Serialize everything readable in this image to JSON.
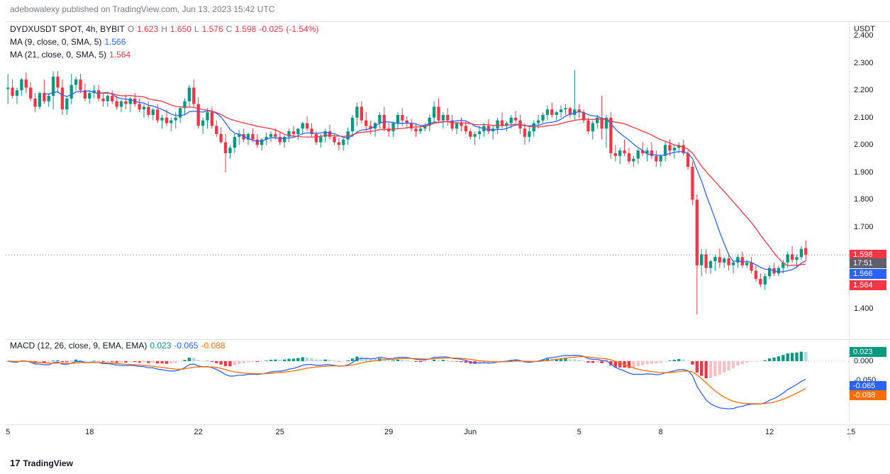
{
  "header": {
    "publish_text": "adebowalexy published on TradingView.com, Jun 13, 2023 15:42 UTC"
  },
  "legend": {
    "symbol": "DYDXUSDT SPOT, 4h, BYBIT",
    "O": "1.623",
    "H": "1.650",
    "L": "1.576",
    "C": "1.598",
    "change": "-0.025",
    "change_pct": "(-1.54%)",
    "ma9_label": "MA (9, close, 0, SMA, 5)",
    "ma9_val": "1.566",
    "ma21_label": "MA (21, close, 0, SMA, 5)",
    "ma21_val": "1.564"
  },
  "macd_legend": {
    "label": "MACD (12, 26, close, 9, EMA, EMA)",
    "hist": "0.023",
    "macd": "-0.065",
    "signal": "-0.088"
  },
  "yaxis_main": {
    "unit": "USDT",
    "min": 1.3,
    "max": 2.45,
    "ticks": [
      2.4,
      2.3,
      2.2,
      2.1,
      2.0,
      1.9,
      1.8,
      1.7,
      1.4
    ],
    "tags": [
      {
        "val": "1.598",
        "bg": "#f23645",
        "y": 1.598
      },
      {
        "val": "17:51",
        "bg": "#5d606b",
        "y": 1.564,
        "offset": -1
      },
      {
        "val": "1.566",
        "bg": "#2962ff",
        "y": 1.566,
        "offset": 14
      },
      {
        "val": "1.564",
        "bg": "#f23645",
        "y": 1.564,
        "offset": 30
      }
    ]
  },
  "yaxis_macd": {
    "min": -0.16,
    "max": 0.055,
    "ticks": [
      0.0,
      -0.05
    ],
    "tags": [
      {
        "val": "0.023",
        "bg": "#089981",
        "y": 0.023
      },
      {
        "val": "-0.065",
        "bg": "#2962ff",
        "y": -0.065
      },
      {
        "val": "-0.088",
        "bg": "#ff6d00",
        "y": -0.088
      }
    ]
  },
  "xaxis": {
    "ticks": [
      {
        "label": "5",
        "i": 0
      },
      {
        "label": "18",
        "i": 18
      },
      {
        "label": "22",
        "i": 42
      },
      {
        "label": "25",
        "i": 60
      },
      {
        "label": "29",
        "i": 84
      },
      {
        "label": "Jun",
        "i": 102
      },
      {
        "label": "5",
        "i": 126
      },
      {
        "label": "8",
        "i": 144
      },
      {
        "label": "12",
        "i": 168
      },
      {
        "label": "15",
        "i": 186
      }
    ],
    "count": 186
  },
  "colors": {
    "up": "#089981",
    "down": "#f23645",
    "up_light": "#acdcd3",
    "down_light": "#f5c1c5",
    "ma9": "#2962ff",
    "ma21": "#f23645",
    "macd_line": "#2962ff",
    "signal_line": "#ff6d00",
    "grid": "#e0e3eb",
    "bg": "#ffffff"
  },
  "candles": [
    {
      "o": 2.205,
      "h": 2.26,
      "l": 2.15,
      "c": 2.21
    },
    {
      "o": 2.21,
      "h": 2.24,
      "l": 2.17,
      "c": 2.18
    },
    {
      "o": 2.18,
      "h": 2.21,
      "l": 2.15,
      "c": 2.2
    },
    {
      "o": 2.2,
      "h": 2.245,
      "l": 2.18,
      "c": 2.24
    },
    {
      "o": 2.24,
      "h": 2.265,
      "l": 2.19,
      "c": 2.21
    },
    {
      "o": 2.21,
      "h": 2.23,
      "l": 2.16,
      "c": 2.17
    },
    {
      "o": 2.17,
      "h": 2.19,
      "l": 2.12,
      "c": 2.14
    },
    {
      "o": 2.14,
      "h": 2.195,
      "l": 2.13,
      "c": 2.19
    },
    {
      "o": 2.19,
      "h": 2.24,
      "l": 2.15,
      "c": 2.16
    },
    {
      "o": 2.16,
      "h": 2.19,
      "l": 2.14,
      "c": 2.18
    },
    {
      "o": 2.18,
      "h": 2.27,
      "l": 2.13,
      "c": 2.25
    },
    {
      "o": 2.25,
      "h": 2.27,
      "l": 2.19,
      "c": 2.21
    },
    {
      "o": 2.21,
      "h": 2.24,
      "l": 2.11,
      "c": 2.13
    },
    {
      "o": 2.13,
      "h": 2.18,
      "l": 2.11,
      "c": 2.17
    },
    {
      "o": 2.17,
      "h": 2.26,
      "l": 2.15,
      "c": 2.22
    },
    {
      "o": 2.22,
      "h": 2.25,
      "l": 2.2,
      "c": 2.24
    },
    {
      "o": 2.24,
      "h": 2.26,
      "l": 2.19,
      "c": 2.2
    },
    {
      "o": 2.2,
      "h": 2.225,
      "l": 2.16,
      "c": 2.17
    },
    {
      "o": 2.17,
      "h": 2.2,
      "l": 2.15,
      "c": 2.19
    },
    {
      "o": 2.19,
      "h": 2.22,
      "l": 2.17,
      "c": 2.2
    },
    {
      "o": 2.2,
      "h": 2.22,
      "l": 2.16,
      "c": 2.17
    },
    {
      "o": 2.17,
      "h": 2.19,
      "l": 2.14,
      "c": 2.16
    },
    {
      "o": 2.16,
      "h": 2.185,
      "l": 2.14,
      "c": 2.18
    },
    {
      "o": 2.18,
      "h": 2.2,
      "l": 2.15,
      "c": 2.16
    },
    {
      "o": 2.16,
      "h": 2.18,
      "l": 2.13,
      "c": 2.14
    },
    {
      "o": 2.14,
      "h": 2.165,
      "l": 2.12,
      "c": 2.16
    },
    {
      "o": 2.16,
      "h": 2.185,
      "l": 2.13,
      "c": 2.15
    },
    {
      "o": 2.15,
      "h": 2.175,
      "l": 2.12,
      "c": 2.17
    },
    {
      "o": 2.17,
      "h": 2.19,
      "l": 2.14,
      "c": 2.15
    },
    {
      "o": 2.15,
      "h": 2.17,
      "l": 2.12,
      "c": 2.13
    },
    {
      "o": 2.13,
      "h": 2.15,
      "l": 2.1,
      "c": 2.14
    },
    {
      "o": 2.14,
      "h": 2.16,
      "l": 2.1,
      "c": 2.11
    },
    {
      "o": 2.11,
      "h": 2.135,
      "l": 2.09,
      "c": 2.13
    },
    {
      "o": 2.13,
      "h": 2.15,
      "l": 2.08,
      "c": 2.09
    },
    {
      "o": 2.09,
      "h": 2.11,
      "l": 2.06,
      "c": 2.1
    },
    {
      "o": 2.1,
      "h": 2.13,
      "l": 2.07,
      "c": 2.08
    },
    {
      "o": 2.08,
      "h": 2.1,
      "l": 2.05,
      "c": 2.09
    },
    {
      "o": 2.09,
      "h": 2.12,
      "l": 2.06,
      "c": 2.1
    },
    {
      "o": 2.1,
      "h": 2.14,
      "l": 2.08,
      "c": 2.135
    },
    {
      "o": 2.135,
      "h": 2.17,
      "l": 2.11,
      "c": 2.16
    },
    {
      "o": 2.16,
      "h": 2.22,
      "l": 2.14,
      "c": 2.21
    },
    {
      "o": 2.21,
      "h": 2.24,
      "l": 2.14,
      "c": 2.15
    },
    {
      "o": 2.15,
      "h": 2.175,
      "l": 2.06,
      "c": 2.07
    },
    {
      "o": 2.07,
      "h": 2.1,
      "l": 2.04,
      "c": 2.09
    },
    {
      "o": 2.09,
      "h": 2.135,
      "l": 2.06,
      "c": 2.12
    },
    {
      "o": 2.12,
      "h": 2.14,
      "l": 2.06,
      "c": 2.07
    },
    {
      "o": 2.07,
      "h": 2.09,
      "l": 2.03,
      "c": 2.04
    },
    {
      "o": 2.04,
      "h": 2.065,
      "l": 2.005,
      "c": 2.01
    },
    {
      "o": 2.01,
      "h": 2.04,
      "l": 1.9,
      "c": 1.97
    },
    {
      "o": 1.97,
      "h": 2.0,
      "l": 1.95,
      "c": 1.99
    },
    {
      "o": 1.99,
      "h": 2.04,
      "l": 1.97,
      "c": 2.03
    },
    {
      "o": 2.03,
      "h": 2.055,
      "l": 2.0,
      "c": 2.04
    },
    {
      "o": 2.04,
      "h": 2.06,
      "l": 2.01,
      "c": 2.02
    },
    {
      "o": 2.02,
      "h": 2.045,
      "l": 2.0,
      "c": 2.04
    },
    {
      "o": 2.04,
      "h": 2.06,
      "l": 2.01,
      "c": 2.02
    },
    {
      "o": 2.02,
      "h": 2.04,
      "l": 1.99,
      "c": 2.0
    },
    {
      "o": 2.0,
      "h": 2.025,
      "l": 1.98,
      "c": 2.02
    },
    {
      "o": 2.02,
      "h": 2.045,
      "l": 2.0,
      "c": 2.03
    },
    {
      "o": 2.03,
      "h": 2.05,
      "l": 2.01,
      "c": 2.04
    },
    {
      "o": 2.04,
      "h": 2.06,
      "l": 2.02,
      "c": 2.03
    },
    {
      "o": 2.03,
      "h": 2.045,
      "l": 2.0,
      "c": 2.01
    },
    {
      "o": 2.01,
      "h": 2.035,
      "l": 1.99,
      "c": 2.03
    },
    {
      "o": 2.03,
      "h": 2.06,
      "l": 2.01,
      "c": 2.05
    },
    {
      "o": 2.05,
      "h": 2.07,
      "l": 2.03,
      "c": 2.04
    },
    {
      "o": 2.04,
      "h": 2.06,
      "l": 2.02,
      "c": 2.06
    },
    {
      "o": 2.06,
      "h": 2.085,
      "l": 2.04,
      "c": 2.08
    },
    {
      "o": 2.08,
      "h": 2.105,
      "l": 2.05,
      "c": 2.06
    },
    {
      "o": 2.06,
      "h": 2.08,
      "l": 2.03,
      "c": 2.04
    },
    {
      "o": 2.04,
      "h": 2.05,
      "l": 2.0,
      "c": 2.01
    },
    {
      "o": 2.01,
      "h": 2.04,
      "l": 1.99,
      "c": 2.03
    },
    {
      "o": 2.03,
      "h": 2.06,
      "l": 2.01,
      "c": 2.05
    },
    {
      "o": 2.05,
      "h": 2.075,
      "l": 2.02,
      "c": 2.03
    },
    {
      "o": 2.03,
      "h": 2.04,
      "l": 2.0,
      "c": 2.01
    },
    {
      "o": 2.01,
      "h": 2.025,
      "l": 1.98,
      "c": 2.0
    },
    {
      "o": 2.0,
      "h": 2.03,
      "l": 1.98,
      "c": 2.02
    },
    {
      "o": 2.02,
      "h": 2.065,
      "l": 2.0,
      "c": 2.05
    },
    {
      "o": 2.05,
      "h": 2.11,
      "l": 2.03,
      "c": 2.1
    },
    {
      "o": 2.1,
      "h": 2.155,
      "l": 2.07,
      "c": 2.14
    },
    {
      "o": 2.14,
      "h": 2.16,
      "l": 2.08,
      "c": 2.09
    },
    {
      "o": 2.09,
      "h": 2.12,
      "l": 2.05,
      "c": 2.07
    },
    {
      "o": 2.07,
      "h": 2.09,
      "l": 2.04,
      "c": 2.06
    },
    {
      "o": 2.06,
      "h": 2.085,
      "l": 2.03,
      "c": 2.08
    },
    {
      "o": 2.08,
      "h": 2.12,
      "l": 2.06,
      "c": 2.11
    },
    {
      "o": 2.11,
      "h": 2.14,
      "l": 2.05,
      "c": 2.06
    },
    {
      "o": 2.06,
      "h": 2.08,
      "l": 2.03,
      "c": 2.05
    },
    {
      "o": 2.05,
      "h": 2.085,
      "l": 2.03,
      "c": 2.08
    },
    {
      "o": 2.08,
      "h": 2.12,
      "l": 2.06,
      "c": 2.11
    },
    {
      "o": 2.11,
      "h": 2.135,
      "l": 2.07,
      "c": 2.09
    },
    {
      "o": 2.09,
      "h": 2.105,
      "l": 2.06,
      "c": 2.08
    },
    {
      "o": 2.08,
      "h": 2.095,
      "l": 2.05,
      "c": 2.06
    },
    {
      "o": 2.06,
      "h": 2.08,
      "l": 2.03,
      "c": 2.05
    },
    {
      "o": 2.05,
      "h": 2.07,
      "l": 2.04,
      "c": 2.06
    },
    {
      "o": 2.06,
      "h": 2.08,
      "l": 2.05,
      "c": 2.07
    },
    {
      "o": 2.07,
      "h": 2.11,
      "l": 2.05,
      "c": 2.1
    },
    {
      "o": 2.1,
      "h": 2.16,
      "l": 2.08,
      "c": 2.14
    },
    {
      "o": 2.14,
      "h": 2.17,
      "l": 2.08,
      "c": 2.09
    },
    {
      "o": 2.09,
      "h": 2.12,
      "l": 2.06,
      "c": 2.11
    },
    {
      "o": 2.11,
      "h": 2.135,
      "l": 2.07,
      "c": 2.09
    },
    {
      "o": 2.09,
      "h": 2.11,
      "l": 2.05,
      "c": 2.06
    },
    {
      "o": 2.06,
      "h": 2.085,
      "l": 2.04,
      "c": 2.08
    },
    {
      "o": 2.08,
      "h": 2.1,
      "l": 2.05,
      "c": 2.07
    },
    {
      "o": 2.07,
      "h": 2.085,
      "l": 2.04,
      "c": 2.05
    },
    {
      "o": 2.05,
      "h": 2.06,
      "l": 2.02,
      "c": 2.03
    },
    {
      "o": 2.03,
      "h": 2.05,
      "l": 2.0,
      "c": 2.04
    },
    {
      "o": 2.04,
      "h": 2.07,
      "l": 2.02,
      "c": 2.05
    },
    {
      "o": 2.05,
      "h": 2.08,
      "l": 2.03,
      "c": 2.07
    },
    {
      "o": 2.07,
      "h": 2.095,
      "l": 2.04,
      "c": 2.05
    },
    {
      "o": 2.05,
      "h": 2.07,
      "l": 2.02,
      "c": 2.06
    },
    {
      "o": 2.06,
      "h": 2.1,
      "l": 2.04,
      "c": 2.09
    },
    {
      "o": 2.09,
      "h": 2.12,
      "l": 2.06,
      "c": 2.07
    },
    {
      "o": 2.07,
      "h": 2.085,
      "l": 2.05,
      "c": 2.08
    },
    {
      "o": 2.08,
      "h": 2.11,
      "l": 2.06,
      "c": 2.1
    },
    {
      "o": 2.1,
      "h": 2.125,
      "l": 2.08,
      "c": 2.09
    },
    {
      "o": 2.09,
      "h": 2.11,
      "l": 2.04,
      "c": 2.06
    },
    {
      "o": 2.06,
      "h": 2.08,
      "l": 2.0,
      "c": 2.03
    },
    {
      "o": 2.03,
      "h": 2.07,
      "l": 2.01,
      "c": 2.05
    },
    {
      "o": 2.05,
      "h": 2.09,
      "l": 2.03,
      "c": 2.08
    },
    {
      "o": 2.08,
      "h": 2.11,
      "l": 2.06,
      "c": 2.09
    },
    {
      "o": 2.09,
      "h": 2.12,
      "l": 2.08,
      "c": 2.11
    },
    {
      "o": 2.11,
      "h": 2.145,
      "l": 2.09,
      "c": 2.13
    },
    {
      "o": 2.13,
      "h": 2.155,
      "l": 2.1,
      "c": 2.11
    },
    {
      "o": 2.11,
      "h": 2.125,
      "l": 2.09,
      "c": 2.12
    },
    {
      "o": 2.12,
      "h": 2.145,
      "l": 2.1,
      "c": 2.13
    },
    {
      "o": 2.13,
      "h": 2.15,
      "l": 2.11,
      "c": 2.135
    },
    {
      "o": 2.135,
      "h": 2.14,
      "l": 2.1,
      "c": 2.11
    },
    {
      "o": 2.11,
      "h": 2.275,
      "l": 2.09,
      "c": 2.13
    },
    {
      "o": 2.13,
      "h": 2.15,
      "l": 2.1,
      "c": 2.12
    },
    {
      "o": 2.12,
      "h": 2.13,
      "l": 2.08,
      "c": 2.09
    },
    {
      "o": 2.09,
      "h": 2.1,
      "l": 2.04,
      "c": 2.05
    },
    {
      "o": 2.05,
      "h": 2.09,
      "l": 2.02,
      "c": 2.08
    },
    {
      "o": 2.08,
      "h": 2.11,
      "l": 2.06,
      "c": 2.1
    },
    {
      "o": 2.1,
      "h": 2.18,
      "l": 2.02,
      "c": 2.06
    },
    {
      "o": 2.06,
      "h": 2.11,
      "l": 1.99,
      "c": 2.1
    },
    {
      "o": 2.1,
      "h": 2.12,
      "l": 1.95,
      "c": 1.97
    },
    {
      "o": 1.97,
      "h": 2.0,
      "l": 1.94,
      "c": 1.96
    },
    {
      "o": 1.96,
      "h": 1.99,
      "l": 1.93,
      "c": 1.98
    },
    {
      "o": 1.98,
      "h": 2.02,
      "l": 1.96,
      "c": 1.97
    },
    {
      "o": 1.97,
      "h": 1.99,
      "l": 1.93,
      "c": 1.94
    },
    {
      "o": 1.94,
      "h": 1.96,
      "l": 1.92,
      "c": 1.95
    },
    {
      "o": 1.95,
      "h": 1.985,
      "l": 1.93,
      "c": 1.98
    },
    {
      "o": 1.98,
      "h": 2.01,
      "l": 1.96,
      "c": 1.97
    },
    {
      "o": 1.97,
      "h": 1.99,
      "l": 1.94,
      "c": 1.98
    },
    {
      "o": 1.98,
      "h": 2.01,
      "l": 1.95,
      "c": 1.96
    },
    {
      "o": 1.96,
      "h": 1.98,
      "l": 1.92,
      "c": 1.94
    },
    {
      "o": 1.94,
      "h": 1.965,
      "l": 1.92,
      "c": 1.96
    },
    {
      "o": 1.96,
      "h": 2.015,
      "l": 1.94,
      "c": 2.0
    },
    {
      "o": 2.0,
      "h": 2.02,
      "l": 1.96,
      "c": 1.98
    },
    {
      "o": 1.98,
      "h": 2.0,
      "l": 1.95,
      "c": 1.99
    },
    {
      "o": 1.99,
      "h": 2.01,
      "l": 1.97,
      "c": 2.0
    },
    {
      "o": 2.0,
      "h": 2.02,
      "l": 1.96,
      "c": 1.97
    },
    {
      "o": 1.97,
      "h": 1.98,
      "l": 1.91,
      "c": 1.92
    },
    {
      "o": 1.92,
      "h": 1.94,
      "l": 1.78,
      "c": 1.8
    },
    {
      "o": 1.8,
      "h": 1.82,
      "l": 1.38,
      "c": 1.56
    },
    {
      "o": 1.56,
      "h": 1.62,
      "l": 1.52,
      "c": 1.6
    },
    {
      "o": 1.6,
      "h": 1.62,
      "l": 1.53,
      "c": 1.55
    },
    {
      "o": 1.55,
      "h": 1.58,
      "l": 1.53,
      "c": 1.575
    },
    {
      "o": 1.575,
      "h": 1.6,
      "l": 1.54,
      "c": 1.59
    },
    {
      "o": 1.59,
      "h": 1.62,
      "l": 1.55,
      "c": 1.57
    },
    {
      "o": 1.57,
      "h": 1.59,
      "l": 1.55,
      "c": 1.585
    },
    {
      "o": 1.585,
      "h": 1.605,
      "l": 1.54,
      "c": 1.56
    },
    {
      "o": 1.56,
      "h": 1.58,
      "l": 1.53,
      "c": 1.57
    },
    {
      "o": 1.57,
      "h": 1.6,
      "l": 1.55,
      "c": 1.59
    },
    {
      "o": 1.59,
      "h": 1.61,
      "l": 1.55,
      "c": 1.56
    },
    {
      "o": 1.56,
      "h": 1.58,
      "l": 1.55,
      "c": 1.57
    },
    {
      "o": 1.57,
      "h": 1.59,
      "l": 1.53,
      "c": 1.54
    },
    {
      "o": 1.54,
      "h": 1.56,
      "l": 1.5,
      "c": 1.51
    },
    {
      "o": 1.51,
      "h": 1.53,
      "l": 1.48,
      "c": 1.49
    },
    {
      "o": 1.49,
      "h": 1.53,
      "l": 1.47,
      "c": 1.52
    },
    {
      "o": 1.52,
      "h": 1.56,
      "l": 1.51,
      "c": 1.55
    },
    {
      "o": 1.55,
      "h": 1.57,
      "l": 1.52,
      "c": 1.53
    },
    {
      "o": 1.53,
      "h": 1.56,
      "l": 1.52,
      "c": 1.55
    },
    {
      "o": 1.55,
      "h": 1.58,
      "l": 1.53,
      "c": 1.57
    },
    {
      "o": 1.57,
      "h": 1.61,
      "l": 1.55,
      "c": 1.6
    },
    {
      "o": 1.6,
      "h": 1.63,
      "l": 1.57,
      "c": 1.58
    },
    {
      "o": 1.58,
      "h": 1.6,
      "l": 1.55,
      "c": 1.59
    },
    {
      "o": 1.59,
      "h": 1.63,
      "l": 1.58,
      "c": 1.62
    },
    {
      "o": 1.623,
      "h": 1.65,
      "l": 1.576,
      "c": 1.598
    }
  ],
  "footer": {
    "logo": "17",
    "text": "TradingView"
  }
}
